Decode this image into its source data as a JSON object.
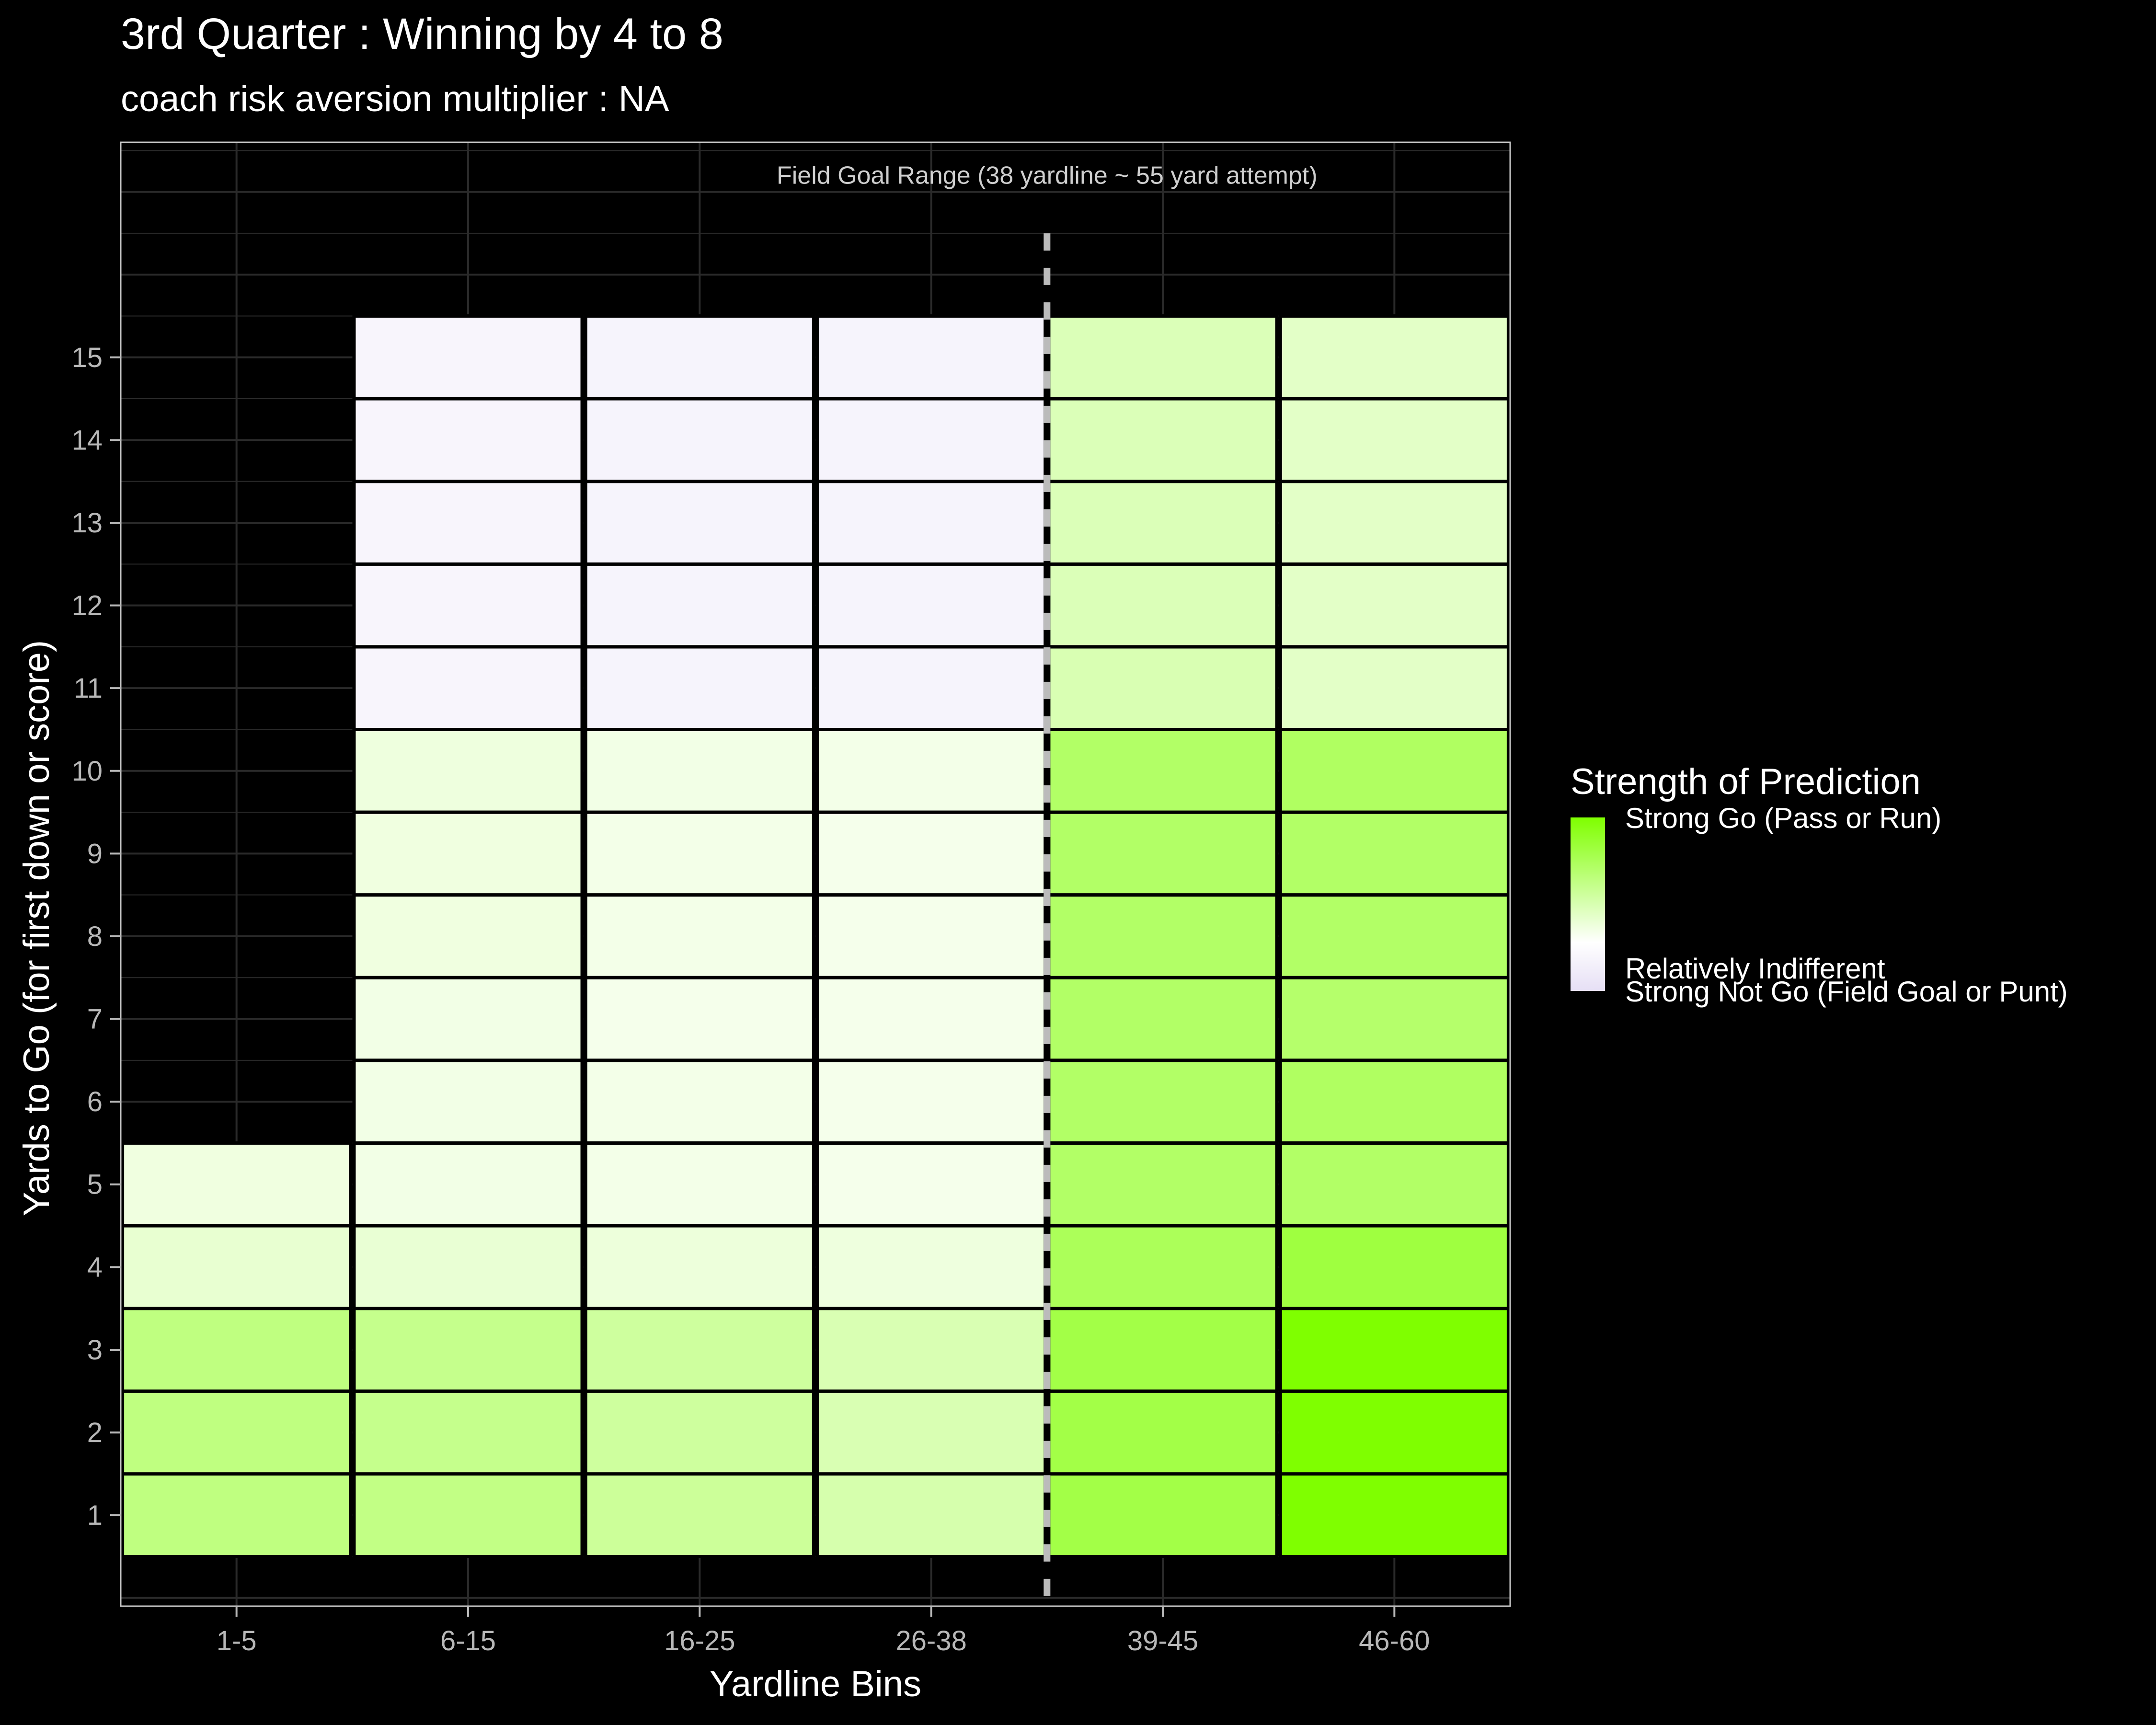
{
  "colors": {
    "background": "#000000",
    "panel_border": "#c8c8c8",
    "grid": "#2a2a2a",
    "tile_border": "#000000",
    "fg_line": "#bbbbbb",
    "text": "#ffffff",
    "tick_text": "#b8b8b8",
    "scale_low": "#e6dff5",
    "scale_mid": "#ffffff",
    "scale_high": "#7fff00"
  },
  "chart_data": {
    "type": "heatmap",
    "title": "3rd Quarter : Winning by 4 to 8",
    "subtitle": "coach risk aversion multiplier : NA",
    "xlabel": "Yardline Bins",
    "ylabel": "Yards to Go (for first down or score)",
    "x_categories": [
      "1-5",
      "6-15",
      "16-25",
      "26-38",
      "39-45",
      "46-60"
    ],
    "y_ticks": [
      1,
      2,
      3,
      4,
      5,
      6,
      7,
      8,
      9,
      10,
      11,
      12,
      13,
      14,
      15
    ],
    "ylim": [
      -0.1,
      17.6
    ],
    "value_scale": "strength: -1 = strong not go, 0 = relatively indifferent, 1 = strong go",
    "field_goal_line_between": [
      "26-38",
      "39-45"
    ],
    "field_goal_annotation": "Field Goal Range (38 yardline ~ 55 yard attempt)",
    "legend": {
      "title": "Strength of Prediction",
      "position": "right",
      "labels": [
        "Strong Go (Pass or Run)",
        "Relatively Indifferent",
        "Strong Not Go (Field Goal or Punt)"
      ]
    },
    "grid": true,
    "series": [
      {
        "x": "1-5",
        "values": [
          0.5,
          0.5,
          0.5,
          0.18,
          0.12,
          null,
          null,
          null,
          null,
          null,
          null,
          null,
          null,
          null,
          null
        ]
      },
      {
        "x": "6-15",
        "values": [
          0.48,
          0.45,
          0.45,
          0.17,
          0.1,
          0.1,
          0.1,
          0.12,
          0.12,
          0.13,
          -0.3,
          -0.3,
          -0.3,
          -0.3,
          -0.3
        ]
      },
      {
        "x": "16-25",
        "values": [
          0.4,
          0.38,
          0.38,
          0.14,
          0.09,
          0.09,
          0.08,
          0.09,
          0.09,
          0.1,
          -0.35,
          -0.35,
          -0.35,
          -0.35,
          -0.35
        ]
      },
      {
        "x": "26-38",
        "values": [
          0.32,
          0.3,
          0.3,
          0.13,
          0.08,
          0.08,
          0.08,
          0.08,
          0.08,
          0.09,
          -0.35,
          -0.35,
          -0.35,
          -0.35,
          -0.35
        ]
      },
      {
        "x": "39-45",
        "values": [
          0.72,
          0.72,
          0.72,
          0.65,
          0.6,
          0.6,
          0.6,
          0.6,
          0.6,
          0.6,
          0.3,
          0.28,
          0.28,
          0.28,
          0.28
        ]
      },
      {
        "x": "46-60",
        "values": [
          1.0,
          1.0,
          1.0,
          0.75,
          0.6,
          0.62,
          0.58,
          0.6,
          0.6,
          0.62,
          0.22,
          0.22,
          0.22,
          0.22,
          0.22
        ]
      }
    ]
  }
}
